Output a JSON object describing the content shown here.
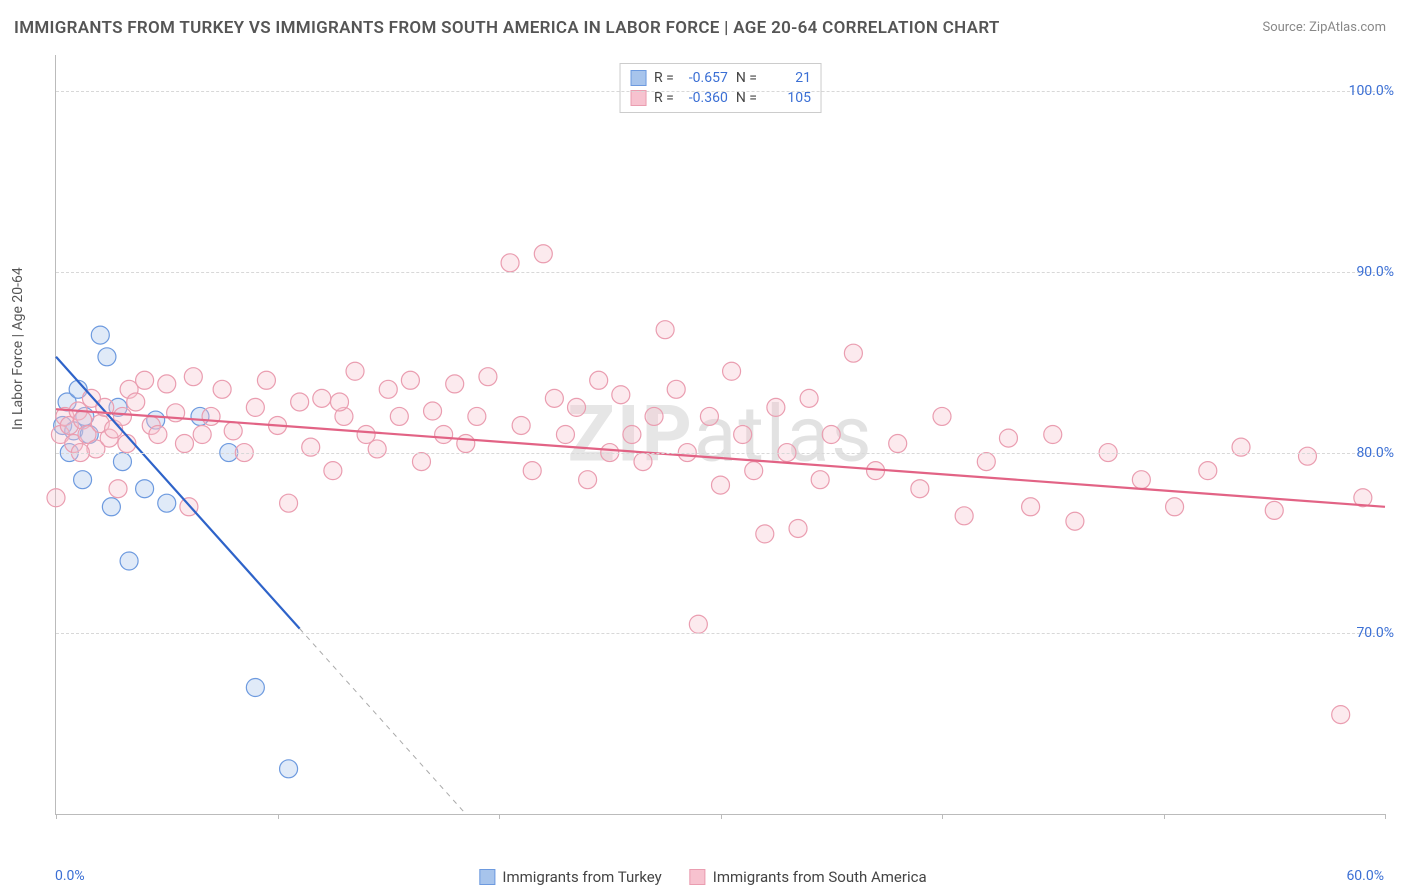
{
  "title": "IMMIGRANTS FROM TURKEY VS IMMIGRANTS FROM SOUTH AMERICA IN LABOR FORCE | AGE 20-64 CORRELATION CHART",
  "source": "Source: ZipAtlas.com",
  "watermark_prefix": "ZIP",
  "watermark_suffix": "atlas",
  "y_axis_label": "In Labor Force | Age 20-64",
  "chart": {
    "type": "scatter",
    "background_color": "#ffffff",
    "grid_color": "#d8d8d8",
    "axis_color": "#bbbbbb",
    "tick_label_color": "#3b6fd4",
    "xlim": [
      0,
      60
    ],
    "ylim": [
      60,
      102
    ],
    "y_ticks": [
      70,
      80,
      90,
      100
    ],
    "y_tick_labels": [
      "70.0%",
      "80.0%",
      "90.0%",
      "100.0%"
    ],
    "x_ticks": [
      0,
      10,
      20,
      30,
      40,
      50,
      60
    ],
    "x_tick_labels": [
      "0.0%",
      "",
      "",
      "",
      "",
      "",
      "60.0%"
    ],
    "marker_radius": 9,
    "marker_stroke_width": 1.2,
    "marker_fill_opacity": 0.35,
    "line_width": 2.2
  },
  "series": [
    {
      "key": "turkey",
      "label": "Immigrants from Turkey",
      "color_fill": "#a7c4ec",
      "color_stroke": "#6d9adf",
      "line_color": "#2e63c9",
      "R": "-0.657",
      "N": "21",
      "regression": {
        "x1": 0,
        "y1": 85.3,
        "x2": 18.5,
        "y2": 60
      },
      "regression_dash_after_x": 11,
      "points": [
        [
          0.3,
          81.5
        ],
        [
          0.5,
          82.8
        ],
        [
          0.6,
          80.0
        ],
        [
          0.8,
          81.2
        ],
        [
          1.0,
          83.5
        ],
        [
          1.2,
          78.5
        ],
        [
          1.3,
          82.0
        ],
        [
          1.5,
          81.0
        ],
        [
          2.0,
          86.5
        ],
        [
          2.3,
          85.3
        ],
        [
          2.5,
          77.0
        ],
        [
          2.8,
          82.5
        ],
        [
          3.0,
          79.5
        ],
        [
          3.3,
          74.0
        ],
        [
          4.0,
          78.0
        ],
        [
          4.5,
          81.8
        ],
        [
          5.0,
          77.2
        ],
        [
          6.5,
          82.0
        ],
        [
          7.8,
          80.0
        ],
        [
          9.0,
          67.0
        ],
        [
          10.5,
          62.5
        ]
      ]
    },
    {
      "key": "south_america",
      "label": "Immigrants from South America",
      "color_fill": "#f7c2cf",
      "color_stroke": "#ea9db0",
      "line_color": "#e26385",
      "R": "-0.360",
      "N": "105",
      "regression": {
        "x1": 0,
        "y1": 82.4,
        "x2": 60,
        "y2": 77.0
      },
      "regression_dash_after_x": 60,
      "points": [
        [
          0.2,
          81.0
        ],
        [
          0.4,
          82.0
        ],
        [
          0.6,
          81.5
        ],
        [
          0.8,
          80.5
        ],
        [
          1.0,
          82.3
        ],
        [
          1.2,
          81.8
        ],
        [
          1.4,
          81.0
        ],
        [
          1.6,
          83.0
        ],
        [
          1.8,
          80.2
        ],
        [
          2.0,
          81.6
        ],
        [
          2.2,
          82.5
        ],
        [
          2.4,
          80.8
        ],
        [
          2.6,
          81.3
        ],
        [
          2.8,
          78.0
        ],
        [
          3.0,
          82.0
        ],
        [
          3.3,
          83.5
        ],
        [
          3.6,
          82.8
        ],
        [
          4.0,
          84.0
        ],
        [
          4.3,
          81.5
        ],
        [
          4.6,
          81.0
        ],
        [
          5.0,
          83.8
        ],
        [
          5.4,
          82.2
        ],
        [
          5.8,
          80.5
        ],
        [
          6.2,
          84.2
        ],
        [
          6.6,
          81.0
        ],
        [
          7.0,
          82.0
        ],
        [
          7.5,
          83.5
        ],
        [
          8.0,
          81.2
        ],
        [
          8.5,
          80.0
        ],
        [
          9.0,
          82.5
        ],
        [
          9.5,
          84.0
        ],
        [
          10.0,
          81.5
        ],
        [
          10.5,
          77.2
        ],
        [
          11.0,
          82.8
        ],
        [
          11.5,
          80.3
        ],
        [
          12.0,
          83.0
        ],
        [
          12.5,
          79.0
        ],
        [
          13.0,
          82.0
        ],
        [
          13.5,
          84.5
        ],
        [
          14.0,
          81.0
        ],
        [
          14.5,
          80.2
        ],
        [
          15.0,
          83.5
        ],
        [
          15.5,
          82.0
        ],
        [
          16.0,
          84.0
        ],
        [
          16.5,
          79.5
        ],
        [
          17.0,
          82.3
        ],
        [
          17.5,
          81.0
        ],
        [
          18.0,
          83.8
        ],
        [
          18.5,
          80.5
        ],
        [
          19.0,
          82.0
        ],
        [
          19.5,
          84.2
        ],
        [
          20.5,
          90.5
        ],
        [
          21.0,
          81.5
        ],
        [
          21.5,
          79.0
        ],
        [
          22.0,
          91.0
        ],
        [
          22.5,
          83.0
        ],
        [
          23.0,
          81.0
        ],
        [
          23.5,
          82.5
        ],
        [
          24.0,
          78.5
        ],
        [
          24.5,
          84.0
        ],
        [
          25.0,
          80.0
        ],
        [
          25.5,
          83.2
        ],
        [
          26.0,
          81.0
        ],
        [
          26.5,
          79.5
        ],
        [
          27.0,
          82.0
        ],
        [
          27.5,
          86.8
        ],
        [
          28.0,
          83.5
        ],
        [
          28.5,
          80.0
        ],
        [
          29.0,
          70.5
        ],
        [
          29.5,
          82.0
        ],
        [
          30.0,
          78.2
        ],
        [
          30.5,
          84.5
        ],
        [
          31.0,
          81.0
        ],
        [
          31.5,
          79.0
        ],
        [
          32.0,
          75.5
        ],
        [
          32.5,
          82.5
        ],
        [
          33.0,
          80.0
        ],
        [
          33.5,
          75.8
        ],
        [
          34.0,
          83.0
        ],
        [
          34.5,
          78.5
        ],
        [
          35.0,
          81.0
        ],
        [
          36.0,
          85.5
        ],
        [
          37.0,
          79.0
        ],
        [
          38.0,
          80.5
        ],
        [
          39.0,
          78.0
        ],
        [
          40.0,
          82.0
        ],
        [
          41.0,
          76.5
        ],
        [
          42.0,
          79.5
        ],
        [
          43.0,
          80.8
        ],
        [
          44.0,
          77.0
        ],
        [
          45.0,
          81.0
        ],
        [
          46.0,
          76.2
        ],
        [
          47.5,
          80.0
        ],
        [
          49.0,
          78.5
        ],
        [
          50.5,
          77.0
        ],
        [
          52.0,
          79.0
        ],
        [
          53.5,
          80.3
        ],
        [
          55.0,
          76.8
        ],
        [
          56.5,
          79.8
        ],
        [
          58.0,
          65.5
        ],
        [
          59.0,
          77.5
        ],
        [
          0.0,
          77.5
        ],
        [
          1.1,
          80.0
        ],
        [
          3.2,
          80.5
        ],
        [
          6.0,
          77.0
        ],
        [
          12.8,
          82.8
        ]
      ]
    }
  ],
  "legend_top": {
    "r_label": "R =",
    "n_label": "N ="
  },
  "legend_bottom_labels": [
    "Immigrants from Turkey",
    "Immigrants from South America"
  ]
}
